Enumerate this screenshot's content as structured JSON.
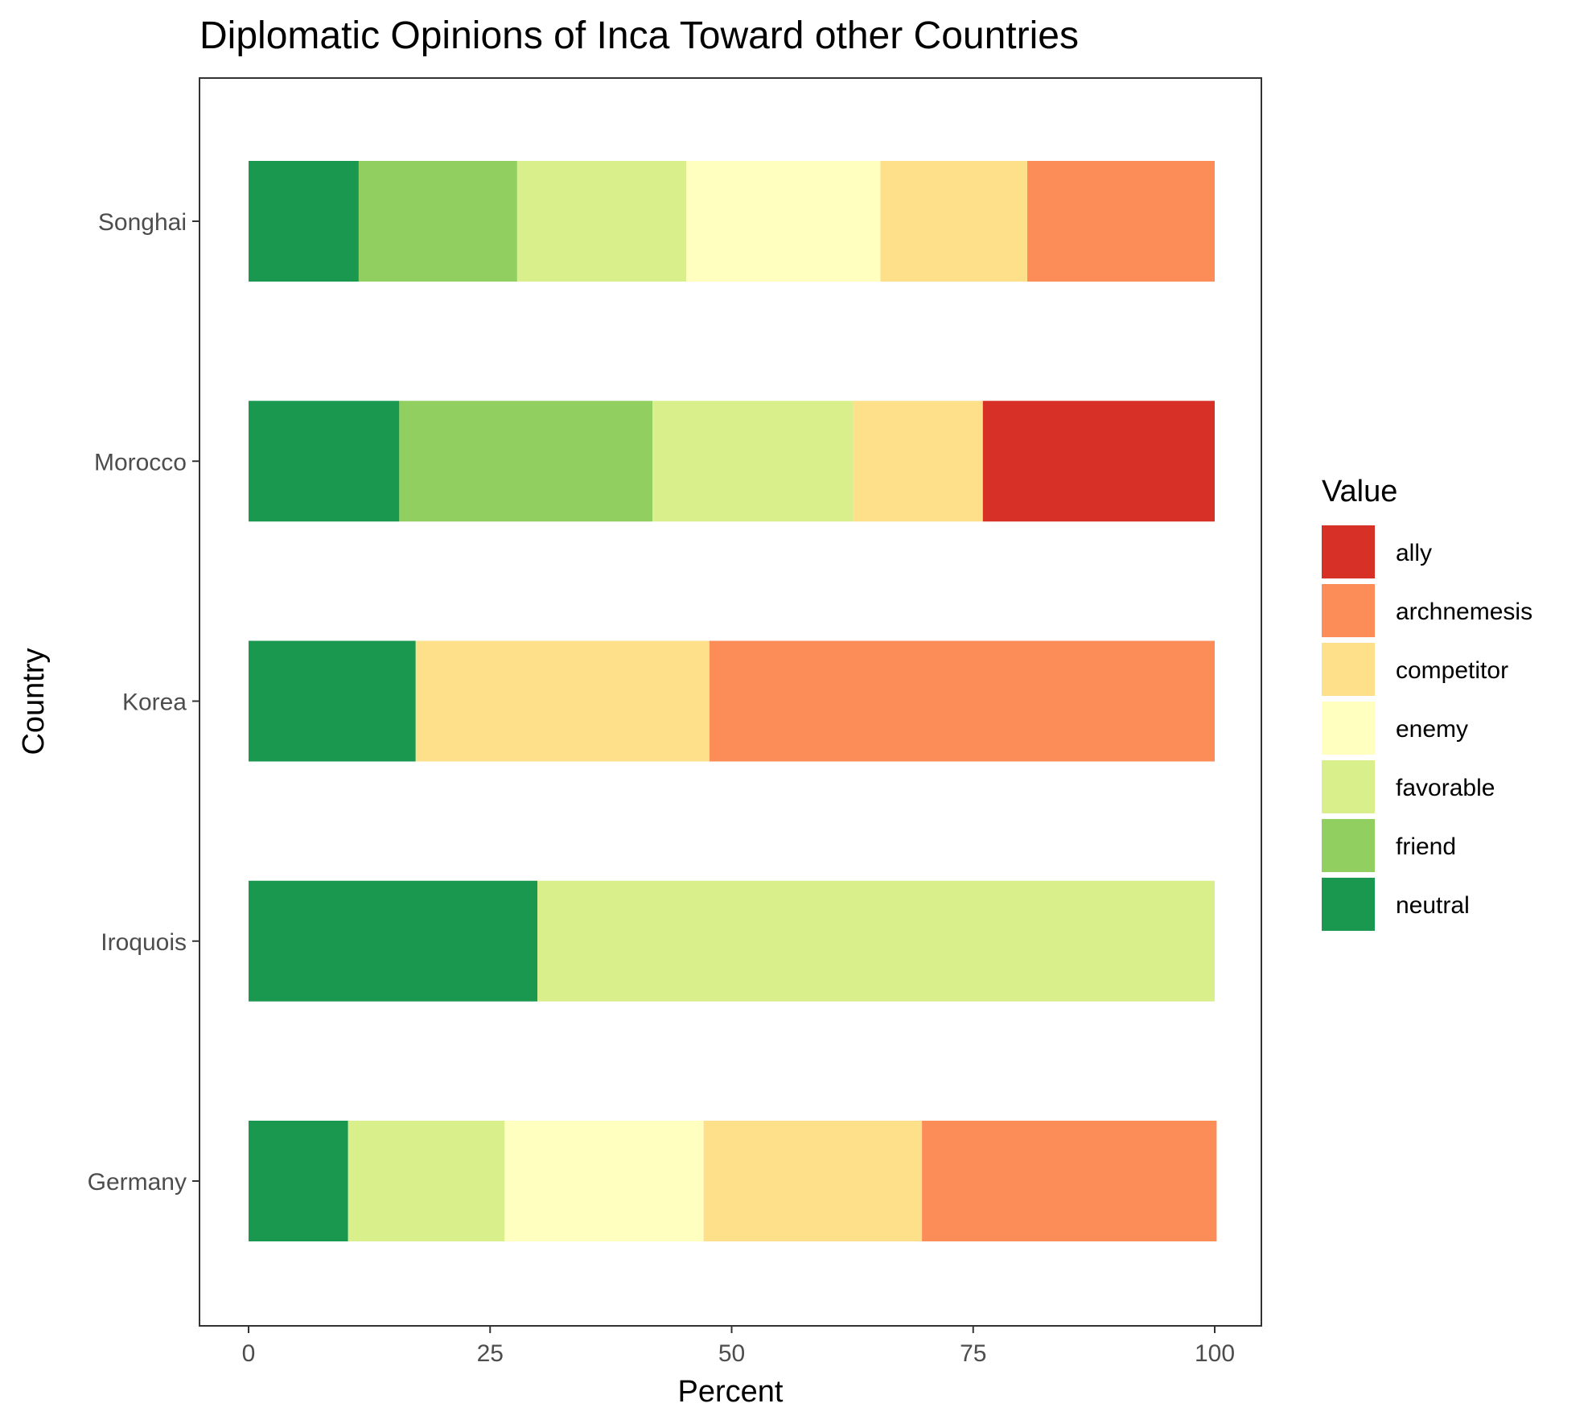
{
  "chart_data": {
    "type": "bar",
    "orientation": "horizontal",
    "stacked": true,
    "title": "Diplomatic Opinions of Inca Toward other Countries",
    "xlabel": "Percent",
    "ylabel": "Country",
    "xlim": [
      0,
      100
    ],
    "x_ticks": [
      "0",
      "25",
      "50",
      "75",
      "100"
    ],
    "categories": [
      "Germany",
      "Iroquois",
      "Korea",
      "Morocco",
      "Songhai"
    ],
    "stack_order": [
      "neutral",
      "friend",
      "favorable",
      "enemy",
      "competitor",
      "archnemesis",
      "ally"
    ],
    "series": [
      {
        "name": "ally",
        "color": "#d73027",
        "values": [
          0,
          0,
          0,
          24,
          0
        ]
      },
      {
        "name": "archnemesis",
        "color": "#fc8d59",
        "values": [
          30.5,
          0,
          52.3,
          0,
          19.4
        ]
      },
      {
        "name": "competitor",
        "color": "#fee08b",
        "values": [
          22.6,
          0,
          30.4,
          13.4,
          15.2
        ]
      },
      {
        "name": "enemy",
        "color": "#ffffbf",
        "values": [
          20.6,
          0,
          0,
          0,
          20.1
        ]
      },
      {
        "name": "favorable",
        "color": "#d9ef8b",
        "values": [
          16.2,
          70.1,
          0,
          20.8,
          17.5
        ]
      },
      {
        "name": "friend",
        "color": "#91cf60",
        "values": [
          0,
          0,
          0,
          26.2,
          16.4
        ]
      },
      {
        "name": "neutral",
        "color": "#1a9850",
        "values": [
          10.3,
          29.9,
          17.3,
          15.6,
          11.4
        ]
      }
    ],
    "legend": {
      "title": "Value",
      "position": "right"
    },
    "grid": false
  }
}
